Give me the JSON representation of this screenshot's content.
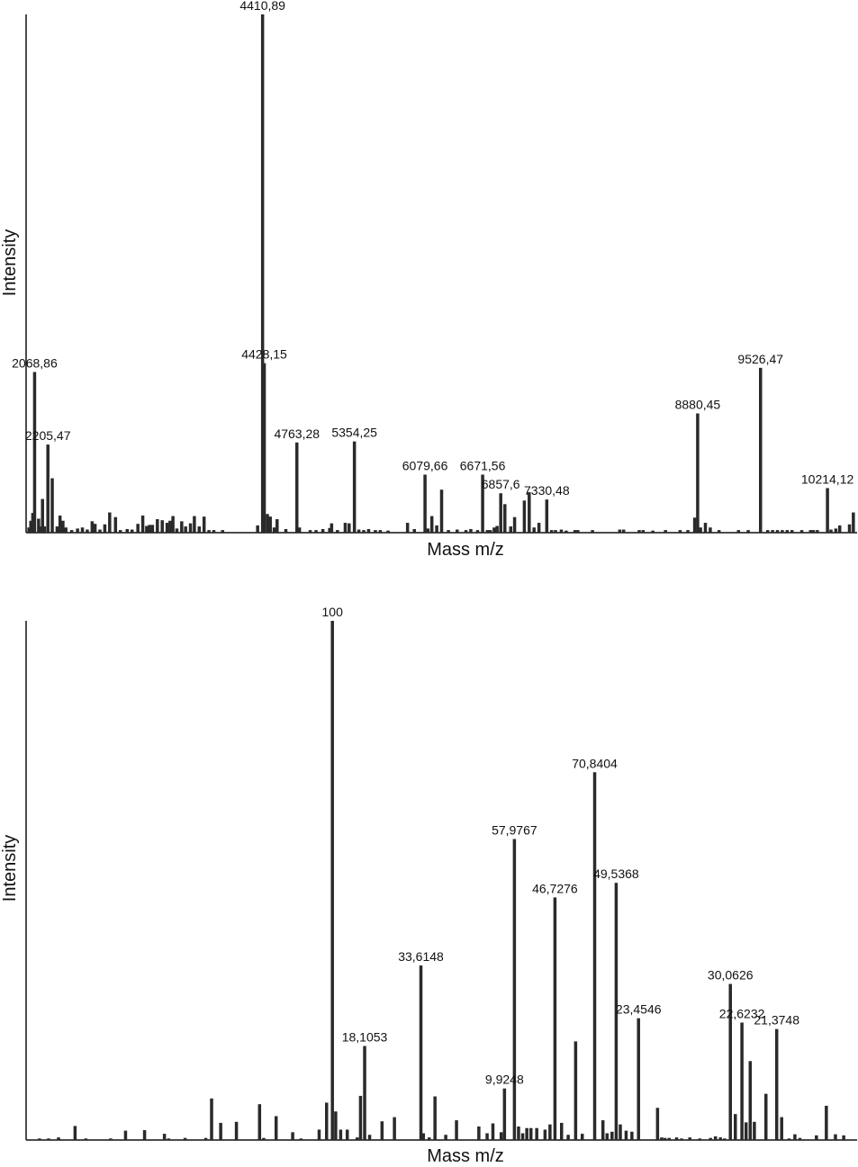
{
  "chart_data": [
    {
      "type": "bar",
      "title": "",
      "xlabel": "Mass m/z",
      "ylabel": "Intensity",
      "xlim": [
        2000,
        10500
      ],
      "ylim": [
        0,
        100
      ],
      "grid": false,
      "colors": {
        "bars": "#2a2a2a",
        "axis": "#111111"
      },
      "peaks": [
        {
          "x": 2068.86,
          "y": 31.0,
          "label": "2068,86"
        },
        {
          "x": 2205.47,
          "y": 17.0,
          "label": "2205,47"
        },
        {
          "x": 4410.89,
          "y": 100.0,
          "label": "4410,89"
        },
        {
          "x": 4428.15,
          "y": 32.7,
          "label": "4428,15"
        },
        {
          "x": 4763.28,
          "y": 17.4,
          "label": "4763,28"
        },
        {
          "x": 5354.25,
          "y": 17.6,
          "label": "5354,25"
        },
        {
          "x": 6079.66,
          "y": 11.2,
          "label": "6079,66"
        },
        {
          "x": 6671.56,
          "y": 11.2,
          "label": "6671,56"
        },
        {
          "x": 6857.6,
          "y": 7.6,
          "label": "6857,6"
        },
        {
          "x": 7330.48,
          "y": 6.4,
          "label": "7330,48"
        },
        {
          "x": 8880.45,
          "y": 23.0,
          "label": "8880,45"
        },
        {
          "x": 9526.47,
          "y": 31.8,
          "label": "9526,47"
        },
        {
          "x": 10214.12,
          "y": 8.6,
          "label": "10214,12"
        }
      ],
      "minor": [
        {
          "x": 2010,
          "y": 1
        },
        {
          "x": 2030,
          "y": 2.3
        },
        {
          "x": 2050,
          "y": 3.8
        },
        {
          "x": 2110,
          "y": 2.7
        },
        {
          "x": 2130,
          "y": 1.2
        },
        {
          "x": 2150,
          "y": 6.5
        },
        {
          "x": 2170,
          "y": 1.2
        },
        {
          "x": 2250,
          "y": 10.5
        },
        {
          "x": 2300,
          "y": 1.2
        },
        {
          "x": 2330,
          "y": 3.3
        },
        {
          "x": 2360,
          "y": 2.3
        },
        {
          "x": 2390,
          "y": 1
        },
        {
          "x": 2450,
          "y": 0.5
        },
        {
          "x": 2510,
          "y": 0.8
        },
        {
          "x": 2560,
          "y": 1
        },
        {
          "x": 2610,
          "y": 0.6
        },
        {
          "x": 2660,
          "y": 2.2
        },
        {
          "x": 2690,
          "y": 1.7
        },
        {
          "x": 2740,
          "y": 0.6
        },
        {
          "x": 2790,
          "y": 1.6
        },
        {
          "x": 2840,
          "y": 3.9
        },
        {
          "x": 2900,
          "y": 3
        },
        {
          "x": 2950,
          "y": 0.5
        },
        {
          "x": 3020,
          "y": 0.7
        },
        {
          "x": 3070,
          "y": 0.6
        },
        {
          "x": 3130,
          "y": 1.7
        },
        {
          "x": 3180,
          "y": 3.3
        },
        {
          "x": 3220,
          "y": 1.3
        },
        {
          "x": 3250,
          "y": 1.5
        },
        {
          "x": 3280,
          "y": 1.5
        },
        {
          "x": 3330,
          "y": 2.6
        },
        {
          "x": 3380,
          "y": 2.4
        },
        {
          "x": 3430,
          "y": 1.9
        },
        {
          "x": 3460,
          "y": 2.3
        },
        {
          "x": 3490,
          "y": 3.2
        },
        {
          "x": 3530,
          "y": 0.8
        },
        {
          "x": 3580,
          "y": 2.2
        },
        {
          "x": 3620,
          "y": 1.2
        },
        {
          "x": 3670,
          "y": 1.8
        },
        {
          "x": 3710,
          "y": 3.2
        },
        {
          "x": 3760,
          "y": 1.2
        },
        {
          "x": 3810,
          "y": 3.1
        },
        {
          "x": 3860,
          "y": 0.5
        },
        {
          "x": 3910,
          "y": 0.5
        },
        {
          "x": 4000,
          "y": 0.5
        },
        {
          "x": 4360,
          "y": 1.4
        },
        {
          "x": 4460,
          "y": 3.6
        },
        {
          "x": 4490,
          "y": 3.1
        },
        {
          "x": 4530,
          "y": 1
        },
        {
          "x": 4560,
          "y": 2.6
        },
        {
          "x": 4650,
          "y": 0.7
        },
        {
          "x": 4790,
          "y": 1
        },
        {
          "x": 4900,
          "y": 0.5
        },
        {
          "x": 4960,
          "y": 0.5
        },
        {
          "x": 5030,
          "y": 0.7
        },
        {
          "x": 5100,
          "y": 0.9
        },
        {
          "x": 5120,
          "y": 1.8
        },
        {
          "x": 5180,
          "y": 0.5
        },
        {
          "x": 5260,
          "y": 1.9
        },
        {
          "x": 5300,
          "y": 1.8
        },
        {
          "x": 5400,
          "y": 0.6
        },
        {
          "x": 5450,
          "y": 0.5
        },
        {
          "x": 5500,
          "y": 0.7
        },
        {
          "x": 5570,
          "y": 0.5
        },
        {
          "x": 5620,
          "y": 0.5
        },
        {
          "x": 5700,
          "y": 0.4
        },
        {
          "x": 5900,
          "y": 1.9
        },
        {
          "x": 5970,
          "y": 0.7
        },
        {
          "x": 6110,
          "y": 0.8
        },
        {
          "x": 6150,
          "y": 3.2
        },
        {
          "x": 6200,
          "y": 1.4
        },
        {
          "x": 6250,
          "y": 8.3
        },
        {
          "x": 6320,
          "y": 0.5
        },
        {
          "x": 6410,
          "y": 0.6
        },
        {
          "x": 6500,
          "y": 0.5
        },
        {
          "x": 6550,
          "y": 0.7
        },
        {
          "x": 6620,
          "y": 0.5
        },
        {
          "x": 6720,
          "y": 0.5
        },
        {
          "x": 6750,
          "y": 0.5
        },
        {
          "x": 6790,
          "y": 1
        },
        {
          "x": 6820,
          "y": 1.3
        },
        {
          "x": 6900,
          "y": 5.5
        },
        {
          "x": 6960,
          "y": 1.2
        },
        {
          "x": 7000,
          "y": 3
        },
        {
          "x": 7100,
          "y": 6.2
        },
        {
          "x": 7150,
          "y": 7.8
        },
        {
          "x": 7200,
          "y": 1
        },
        {
          "x": 7250,
          "y": 1.9
        },
        {
          "x": 7380,
          "y": 0.5
        },
        {
          "x": 7420,
          "y": 0.5
        },
        {
          "x": 7480,
          "y": 0.6
        },
        {
          "x": 7530,
          "y": 0.4
        },
        {
          "x": 7620,
          "y": 0.5
        },
        {
          "x": 7650,
          "y": 0.5
        },
        {
          "x": 7800,
          "y": 0.5
        },
        {
          "x": 8080,
          "y": 0.6
        },
        {
          "x": 8120,
          "y": 0.6
        },
        {
          "x": 8280,
          "y": 0.5
        },
        {
          "x": 8320,
          "y": 0.5
        },
        {
          "x": 8420,
          "y": 0.4
        },
        {
          "x": 8550,
          "y": 0.5
        },
        {
          "x": 8700,
          "y": 0.5
        },
        {
          "x": 8780,
          "y": 0.5
        },
        {
          "x": 8850,
          "y": 2.9
        },
        {
          "x": 8910,
          "y": 1
        },
        {
          "x": 8960,
          "y": 1.9
        },
        {
          "x": 9010,
          "y": 1
        },
        {
          "x": 9100,
          "y": 0.5
        },
        {
          "x": 9300,
          "y": 0.5
        },
        {
          "x": 9400,
          "y": 0.5
        },
        {
          "x": 9600,
          "y": 0.5
        },
        {
          "x": 9650,
          "y": 0.5
        },
        {
          "x": 9700,
          "y": 0.5
        },
        {
          "x": 9750,
          "y": 0.5
        },
        {
          "x": 9800,
          "y": 0.5
        },
        {
          "x": 9850,
          "y": 0.5
        },
        {
          "x": 9950,
          "y": 0.5
        },
        {
          "x": 10040,
          "y": 0.5
        },
        {
          "x": 10070,
          "y": 0.5
        },
        {
          "x": 10110,
          "y": 0.5
        },
        {
          "x": 10250,
          "y": 0.6
        },
        {
          "x": 10300,
          "y": 0.8
        },
        {
          "x": 10340,
          "y": 1.4
        },
        {
          "x": 10440,
          "y": 1.6
        },
        {
          "x": 10480,
          "y": 3.9
        }
      ]
    },
    {
      "type": "bar",
      "title": "",
      "xlabel": "Mass m/z",
      "ylabel": "Intensity",
      "xlim": [
        0,
        100
      ],
      "ylim": [
        0,
        100
      ],
      "grid": false,
      "colors": {
        "bars": "#2a2a2a",
        "axis": "#111111"
      },
      "peaks": [
        {
          "x": 36.8,
          "y": 100.0,
          "label": "100"
        },
        {
          "x": 40.7,
          "y": 18.1053,
          "label": "18,1053"
        },
        {
          "x": 47.5,
          "y": 33.6148,
          "label": "33,6148"
        },
        {
          "x": 57.6,
          "y": 9.9248,
          "label": "9,9248"
        },
        {
          "x": 58.8,
          "y": 57.9767,
          "label": "57,9767"
        },
        {
          "x": 63.7,
          "y": 46.7276,
          "label": "46,7276"
        },
        {
          "x": 68.5,
          "y": 70.8404,
          "label": "70,8404"
        },
        {
          "x": 71.1,
          "y": 49.5368,
          "label": "49,5368"
        },
        {
          "x": 73.8,
          "y": 23.4546,
          "label": "23,4546"
        },
        {
          "x": 84.9,
          "y": 30.0626,
          "label": "30,0626"
        },
        {
          "x": 86.3,
          "y": 22.6232,
          "label": "22,6232"
        },
        {
          "x": 90.5,
          "y": 21.3748,
          "label": "21,3748"
        }
      ],
      "minor": [
        {
          "x": 1.4,
          "y": 0.3
        },
        {
          "x": 2.5,
          "y": 0.3
        },
        {
          "x": 3.7,
          "y": 0.5
        },
        {
          "x": 5.7,
          "y": 2.7
        },
        {
          "x": 7,
          "y": 0.3
        },
        {
          "x": 10,
          "y": 0.3
        },
        {
          "x": 11.8,
          "y": 1.8
        },
        {
          "x": 14.1,
          "y": 1.9
        },
        {
          "x": 16.5,
          "y": 1.2
        },
        {
          "x": 17,
          "y": 0.3
        },
        {
          "x": 19,
          "y": 0.4
        },
        {
          "x": 21.5,
          "y": 0.4
        },
        {
          "x": 22.2,
          "y": 8
        },
        {
          "x": 23.3,
          "y": 3.3
        },
        {
          "x": 25.2,
          "y": 3.5
        },
        {
          "x": 28,
          "y": 6.9
        },
        {
          "x": 28.5,
          "y": 0.4
        },
        {
          "x": 30,
          "y": 4.6
        },
        {
          "x": 32,
          "y": 1.5
        },
        {
          "x": 33,
          "y": 0.3
        },
        {
          "x": 35.2,
          "y": 2
        },
        {
          "x": 36.1,
          "y": 7.2
        },
        {
          "x": 37.2,
          "y": 5.5
        },
        {
          "x": 37.8,
          "y": 2
        },
        {
          "x": 38.6,
          "y": 2
        },
        {
          "x": 39.8,
          "y": 0.5
        },
        {
          "x": 40.2,
          "y": 8.5
        },
        {
          "x": 41.3,
          "y": 1
        },
        {
          "x": 42.8,
          "y": 3.6
        },
        {
          "x": 44.3,
          "y": 4.4
        },
        {
          "x": 47.8,
          "y": 1.3
        },
        {
          "x": 48.5,
          "y": 0.5
        },
        {
          "x": 49.2,
          "y": 8.4
        },
        {
          "x": 50.5,
          "y": 1
        },
        {
          "x": 51.8,
          "y": 3.8
        },
        {
          "x": 54.5,
          "y": 2.6
        },
        {
          "x": 55.5,
          "y": 1.3
        },
        {
          "x": 56.2,
          "y": 3.2
        },
        {
          "x": 57.2,
          "y": 1.5
        },
        {
          "x": 59.3,
          "y": 2.6
        },
        {
          "x": 59.8,
          "y": 1.3
        },
        {
          "x": 60.3,
          "y": 2.3
        },
        {
          "x": 60.8,
          "y": 2.3
        },
        {
          "x": 61.5,
          "y": 2.3
        },
        {
          "x": 62.5,
          "y": 2
        },
        {
          "x": 63.1,
          "y": 3
        },
        {
          "x": 64.5,
          "y": 3.3
        },
        {
          "x": 65.3,
          "y": 1
        },
        {
          "x": 66.2,
          "y": 19
        },
        {
          "x": 67,
          "y": 1.2
        },
        {
          "x": 69.5,
          "y": 3.8
        },
        {
          "x": 70,
          "y": 1.3
        },
        {
          "x": 70.6,
          "y": 1.6
        },
        {
          "x": 71.6,
          "y": 3
        },
        {
          "x": 72.3,
          "y": 1.8
        },
        {
          "x": 73,
          "y": 1.6
        },
        {
          "x": 76.1,
          "y": 6.2
        },
        {
          "x": 76.6,
          "y": 0.5
        },
        {
          "x": 77,
          "y": 0.4
        },
        {
          "x": 77.5,
          "y": 0.4
        },
        {
          "x": 78.4,
          "y": 0.5
        },
        {
          "x": 79,
          "y": 0.3
        },
        {
          "x": 80,
          "y": 0.5
        },
        {
          "x": 81.2,
          "y": 0.3
        },
        {
          "x": 82.5,
          "y": 0.4
        },
        {
          "x": 83.1,
          "y": 0.7
        },
        {
          "x": 83.7,
          "y": 0.5
        },
        {
          "x": 84.2,
          "y": 0.3
        },
        {
          "x": 85.5,
          "y": 5
        },
        {
          "x": 86.8,
          "y": 3.4
        },
        {
          "x": 87.3,
          "y": 15.2
        },
        {
          "x": 87.8,
          "y": 3.5
        },
        {
          "x": 89.2,
          "y": 8.9
        },
        {
          "x": 91.1,
          "y": 4.4
        },
        {
          "x": 92,
          "y": 0.3
        },
        {
          "x": 92.7,
          "y": 1.1
        },
        {
          "x": 93.3,
          "y": 0.4
        },
        {
          "x": 95.3,
          "y": 0.9
        },
        {
          "x": 96.5,
          "y": 6.6
        },
        {
          "x": 97.6,
          "y": 1.1
        },
        {
          "x": 98.6,
          "y": 0.9
        }
      ]
    }
  ]
}
